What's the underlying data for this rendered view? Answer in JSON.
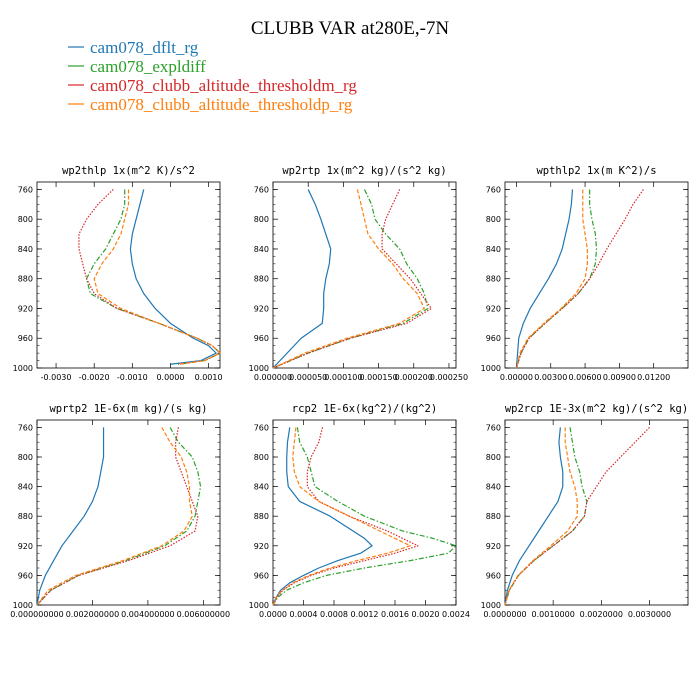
{
  "title": "CLUBB VAR at280E,-7N",
  "legend": [
    {
      "label": "cam078_dflt_rg",
      "color": "#1f77b4",
      "dash": "solid"
    },
    {
      "label": "cam078_expldiff",
      "color": "#2ca02c",
      "dash": "dashdot"
    },
    {
      "label": "cam078_clubb_altitude_thresholdm_rg",
      "color": "#d62728",
      "dash": "dotted"
    },
    {
      "label": "cam078_clubb_altitude_thresholdp_rg",
      "color": "#ff7f0e",
      "dash": "dashed"
    }
  ],
  "chart_data": [
    {
      "type": "line",
      "title": "wp2thlp  1x(m^2 K)/s^2",
      "xlim": [
        -0.0035,
        0.0013
      ],
      "ylim": [
        1000,
        750
      ],
      "xticks": [
        -0.003,
        -0.002,
        -0.001,
        0,
        0.001
      ],
      "xtick_labels": [
        "-0.0030",
        "-0.0020",
        "-0.0010",
        "0.0000",
        "0.0010"
      ],
      "yticks": [
        760,
        800,
        840,
        880,
        920,
        960,
        1000
      ],
      "y": [
        760,
        780,
        800,
        820,
        840,
        860,
        880,
        900,
        920,
        940,
        960,
        970,
        980,
        990,
        995
      ],
      "series": [
        {
          "name": "cam078_dflt_rg",
          "x": [
            -0.0007,
            -0.0008,
            -0.0009,
            -0.001,
            -0.00105,
            -0.001,
            -0.0009,
            -0.0007,
            -0.0004,
            0.0,
            0.0006,
            0.001,
            0.0012,
            0.0008,
            0.0
          ]
        },
        {
          "name": "cam078_expldiff",
          "x": [
            -0.0012,
            -0.0012,
            -0.0013,
            -0.0015,
            -0.0017,
            -0.002,
            -0.0022,
            -0.0021,
            -0.0014,
            -0.0003,
            0.0007,
            0.0011,
            0.0013,
            0.0009,
            0.0002
          ]
        },
        {
          "name": "cam078_clubb_altitude_thresholdm_rg",
          "x": [
            -0.0015,
            -0.0019,
            -0.0022,
            -0.0024,
            -0.0024,
            -0.0023,
            -0.0022,
            -0.002,
            -0.0014,
            -0.0003,
            0.0007,
            0.0011,
            0.0013,
            0.0009,
            0.0002
          ]
        },
        {
          "name": "cam078_clubb_altitude_thresholdp_rg",
          "x": [
            -0.0011,
            -0.0011,
            -0.0012,
            -0.0013,
            -0.0015,
            -0.0018,
            -0.002,
            -0.0019,
            -0.0013,
            -0.0003,
            0.0007,
            0.0011,
            0.0013,
            0.0009,
            0.0002
          ]
        }
      ]
    },
    {
      "type": "line",
      "title": "wp2rtp  1x(m^2 kg)/(s^2 kg)",
      "xlim": [
        0,
        0.00026
      ],
      "ylim": [
        1000,
        750
      ],
      "xticks": [
        0,
        5e-05,
        0.0001,
        0.00015,
        0.0002,
        0.00025
      ],
      "xtick_labels": [
        "0.000000",
        "0.000050",
        "0.000100",
        "0.000150",
        "0.000200",
        "0.000250"
      ],
      "yticks": [
        760,
        800,
        840,
        880,
        920,
        960,
        1000
      ],
      "y": [
        760,
        780,
        800,
        820,
        840,
        860,
        880,
        900,
        920,
        940,
        960,
        980,
        1000
      ],
      "series": [
        {
          "name": "cam078_dflt_rg",
          "x": [
            5e-05,
            6e-05,
            6.8e-05,
            7.5e-05,
            8.2e-05,
            8e-05,
            7.5e-05,
            7.2e-05,
            7.2e-05,
            7e-05,
            4e-05,
            2e-05,
            0.0
          ]
        },
        {
          "name": "cam078_expldiff",
          "x": [
            0.00013,
            0.00014,
            0.000145,
            0.00016,
            0.00018,
            0.00019,
            0.000205,
            0.000215,
            0.00022,
            0.000185,
            0.00011,
            5e-05,
            0.0
          ]
        },
        {
          "name": "cam078_clubb_altitude_thresholdm_rg",
          "x": [
            0.00018,
            0.00017,
            0.00016,
            0.000155,
            0.000155,
            0.000175,
            0.000195,
            0.00021,
            0.000225,
            0.00019,
            0.00011,
            5e-05,
            0.0
          ]
        },
        {
          "name": "cam078_clubb_altitude_thresholdp_rg",
          "x": [
            0.00012,
            0.000125,
            0.00013,
            0.000135,
            0.00015,
            0.00017,
            0.000185,
            0.000205,
            0.000215,
            0.00018,
            0.000105,
            4.5e-05,
            0.0
          ]
        }
      ]
    },
    {
      "type": "line",
      "title": "wpthlp2  1x(m K^2)/s",
      "xlim": [
        -0.001,
        0.015
      ],
      "ylim": [
        1000,
        750
      ],
      "xticks": [
        0,
        0.003,
        0.006,
        0.009,
        0.012
      ],
      "xtick_labels": [
        "0.00000",
        "0.00300",
        "0.00600",
        "0.00900",
        "0.01200"
      ],
      "yticks": [
        760,
        800,
        840,
        880,
        920,
        960,
        1000
      ],
      "y": [
        760,
        780,
        800,
        820,
        840,
        860,
        880,
        900,
        920,
        940,
        960,
        980,
        1000
      ],
      "series": [
        {
          "name": "cam078_dflt_rg",
          "x": [
            0.0049,
            0.0048,
            0.0046,
            0.0043,
            0.004,
            0.0035,
            0.0028,
            0.002,
            0.0012,
            0.0006,
            0.0002,
            0.0001,
            0.0
          ]
        },
        {
          "name": "cam078_expldiff",
          "x": [
            0.0064,
            0.0064,
            0.0066,
            0.0069,
            0.007,
            0.0069,
            0.0064,
            0.0054,
            0.004,
            0.0025,
            0.0011,
            0.0004,
            0.0
          ]
        },
        {
          "name": "cam078_clubb_altitude_thresholdm_rg",
          "x": [
            0.0111,
            0.0102,
            0.0095,
            0.0087,
            0.0079,
            0.0072,
            0.0064,
            0.0054,
            0.004,
            0.0025,
            0.0011,
            0.0004,
            0.0
          ]
        },
        {
          "name": "cam078_clubb_altitude_thresholdp_rg",
          "x": [
            0.0058,
            0.0058,
            0.0058,
            0.006,
            0.0062,
            0.0062,
            0.006,
            0.0052,
            0.0039,
            0.0024,
            0.001,
            0.0003,
            0.0
          ]
        }
      ]
    },
    {
      "type": "line",
      "title": "wprtp2  1E-6x(m kg)/(s kg)",
      "xlim": [
        0,
        0.0066
      ],
      "ylim": [
        1000,
        750
      ],
      "xticks": [
        0,
        0.002,
        0.004,
        0.006
      ],
      "xtick_labels": [
        "0.000000000",
        "0.002000000",
        "0.004000000",
        "0.006000000"
      ],
      "yticks": [
        760,
        800,
        840,
        880,
        920,
        960,
        1000
      ],
      "y": [
        760,
        780,
        800,
        820,
        840,
        860,
        880,
        900,
        920,
        940,
        960,
        980,
        1000
      ],
      "series": [
        {
          "name": "cam078_dflt_rg",
          "x": [
            0.0024,
            0.0024,
            0.0024,
            0.0023,
            0.0022,
            0.002,
            0.0017,
            0.0013,
            0.0009,
            0.0006,
            0.0003,
            0.0001,
            0.0
          ]
        },
        {
          "name": "cam078_expldiff",
          "x": [
            0.0048,
            0.0051,
            0.0056,
            0.0058,
            0.0059,
            0.0058,
            0.0057,
            0.0054,
            0.0046,
            0.0032,
            0.0015,
            0.0005,
            0.0
          ]
        },
        {
          "name": "cam078_clubb_altitude_thresholdm_rg",
          "x": [
            0.0051,
            0.005,
            0.005,
            0.0052,
            0.0054,
            0.0056,
            0.0058,
            0.0057,
            0.0048,
            0.0033,
            0.0015,
            0.0005,
            0.0
          ]
        },
        {
          "name": "cam078_clubb_altitude_thresholdp_rg",
          "x": [
            0.0045,
            0.0048,
            0.0052,
            0.0054,
            0.0055,
            0.0055,
            0.0056,
            0.0053,
            0.0045,
            0.0031,
            0.0014,
            0.0004,
            0.0
          ]
        }
      ]
    },
    {
      "type": "line",
      "title": "rcp2  1E-6x(kg^2)/(kg^2)",
      "xlim": [
        0,
        0.0024
      ],
      "ylim": [
        1000,
        750
      ],
      "xticks": [
        0,
        0.0004,
        0.0008,
        0.0012,
        0.0016,
        0.002,
        0.0024
      ],
      "xtick_labels": [
        "0.0000",
        "0.0004",
        "0.0008",
        "0.0012",
        "0.0016",
        "0.0020",
        "0.0024"
      ],
      "yticks": [
        760,
        800,
        840,
        880,
        920,
        960,
        1000
      ],
      "y": [
        760,
        780,
        800,
        820,
        840,
        860,
        880,
        900,
        910,
        920,
        930,
        940,
        950,
        960,
        970,
        980,
        990,
        1000
      ],
      "series": [
        {
          "name": "cam078_dflt_rg",
          "x": [
            0.00022,
            0.00019,
            0.00018,
            0.00018,
            0.0002,
            0.00035,
            0.00075,
            0.00105,
            0.0012,
            0.0013,
            0.00115,
            0.00085,
            0.0006,
            0.0004,
            0.00022,
            0.0001,
            4e-05,
            0.0
          ]
        },
        {
          "name": "cam078_expldiff",
          "x": [
            0.00032,
            0.00035,
            0.00045,
            0.0005,
            0.00055,
            0.00085,
            0.0012,
            0.0017,
            0.0021,
            0.0024,
            0.0023,
            0.0018,
            0.0012,
            0.0007,
            0.0004,
            0.00018,
            6e-05,
            0.0
          ]
        },
        {
          "name": "cam078_clubb_altitude_thresholdm_rg",
          "x": [
            0.00065,
            0.0006,
            0.0005,
            0.00045,
            0.00045,
            0.0006,
            0.001,
            0.0015,
            0.0017,
            0.0019,
            0.0016,
            0.0012,
            0.0008,
            0.0005,
            0.00028,
            0.00013,
            5e-05,
            0.0
          ]
        },
        {
          "name": "cam078_clubb_altitude_thresholdp_rg",
          "x": [
            0.0003,
            0.00028,
            0.00026,
            0.00028,
            0.00035,
            0.0006,
            0.001,
            0.0014,
            0.0016,
            0.0018,
            0.0015,
            0.0011,
            0.00075,
            0.00047,
            0.00026,
            0.00012,
            4e-05,
            0.0
          ]
        }
      ]
    },
    {
      "type": "line",
      "title": "wp2rcp  1E-3x(m^2 kg)/(s^2 kg)",
      "xlim": [
        0,
        0.0038
      ],
      "ylim": [
        1000,
        750
      ],
      "xticks": [
        0,
        0.001,
        0.002,
        0.003
      ],
      "xtick_labels": [
        "0.0000000",
        "0.0010000",
        "0.0020000",
        "0.0030000"
      ],
      "yticks": [
        760,
        800,
        840,
        880,
        920,
        960,
        1000
      ],
      "y": [
        760,
        780,
        800,
        820,
        840,
        860,
        880,
        900,
        920,
        940,
        960,
        980,
        1000
      ],
      "series": [
        {
          "name": "cam078_dflt_rg",
          "x": [
            0.00115,
            0.00112,
            0.00115,
            0.0012,
            0.0012,
            0.0011,
            0.0009,
            0.0007,
            0.0005,
            0.0003,
            0.00015,
            5e-05,
            0.0
          ]
        },
        {
          "name": "cam078_expldiff",
          "x": [
            0.00135,
            0.0014,
            0.00145,
            0.00155,
            0.0016,
            0.0017,
            0.00165,
            0.0014,
            0.001,
            0.0006,
            0.00028,
            9e-05,
            0.0
          ]
        },
        {
          "name": "cam078_clubb_altitude_thresholdm_rg",
          "x": [
            0.003,
            0.0027,
            0.0024,
            0.0021,
            0.0019,
            0.0017,
            0.00165,
            0.0014,
            0.001,
            0.0006,
            0.00028,
            9e-05,
            0.0
          ]
        },
        {
          "name": "cam078_clubb_altitude_thresholdp_rg",
          "x": [
            0.00125,
            0.00125,
            0.0013,
            0.00135,
            0.00145,
            0.0015,
            0.0015,
            0.0013,
            0.00095,
            0.00058,
            0.00027,
            8e-05,
            0.0
          ]
        }
      ]
    }
  ]
}
